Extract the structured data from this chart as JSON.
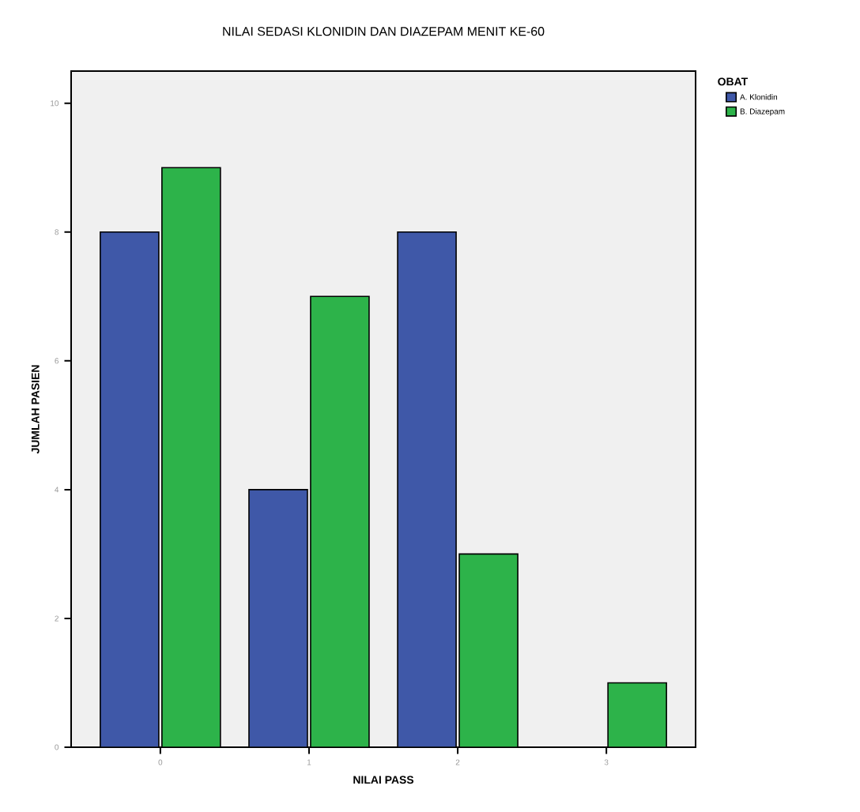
{
  "chart_data": {
    "type": "bar",
    "title": "NILAI SEDASI KLONIDIN DAN DIAZEPAM MENIT KE-60",
    "xlabel": "NILAI PASS",
    "ylabel": "JUMLAH PASIEN",
    "legend_title": "OBAT",
    "categories": [
      "0",
      "1",
      "2",
      "3"
    ],
    "series": [
      {
        "name": "A. Klonidin",
        "color": "#3f58a8",
        "values": [
          8,
          4,
          8,
          0
        ]
      },
      {
        "name": "B. Diazepam",
        "color": "#2db34a",
        "values": [
          9,
          7,
          3,
          1
        ]
      }
    ],
    "ylim": [
      0,
      10.5
    ],
    "yticks": [
      0,
      2,
      4,
      6,
      8,
      10
    ],
    "grid": false,
    "legend": "top right"
  }
}
